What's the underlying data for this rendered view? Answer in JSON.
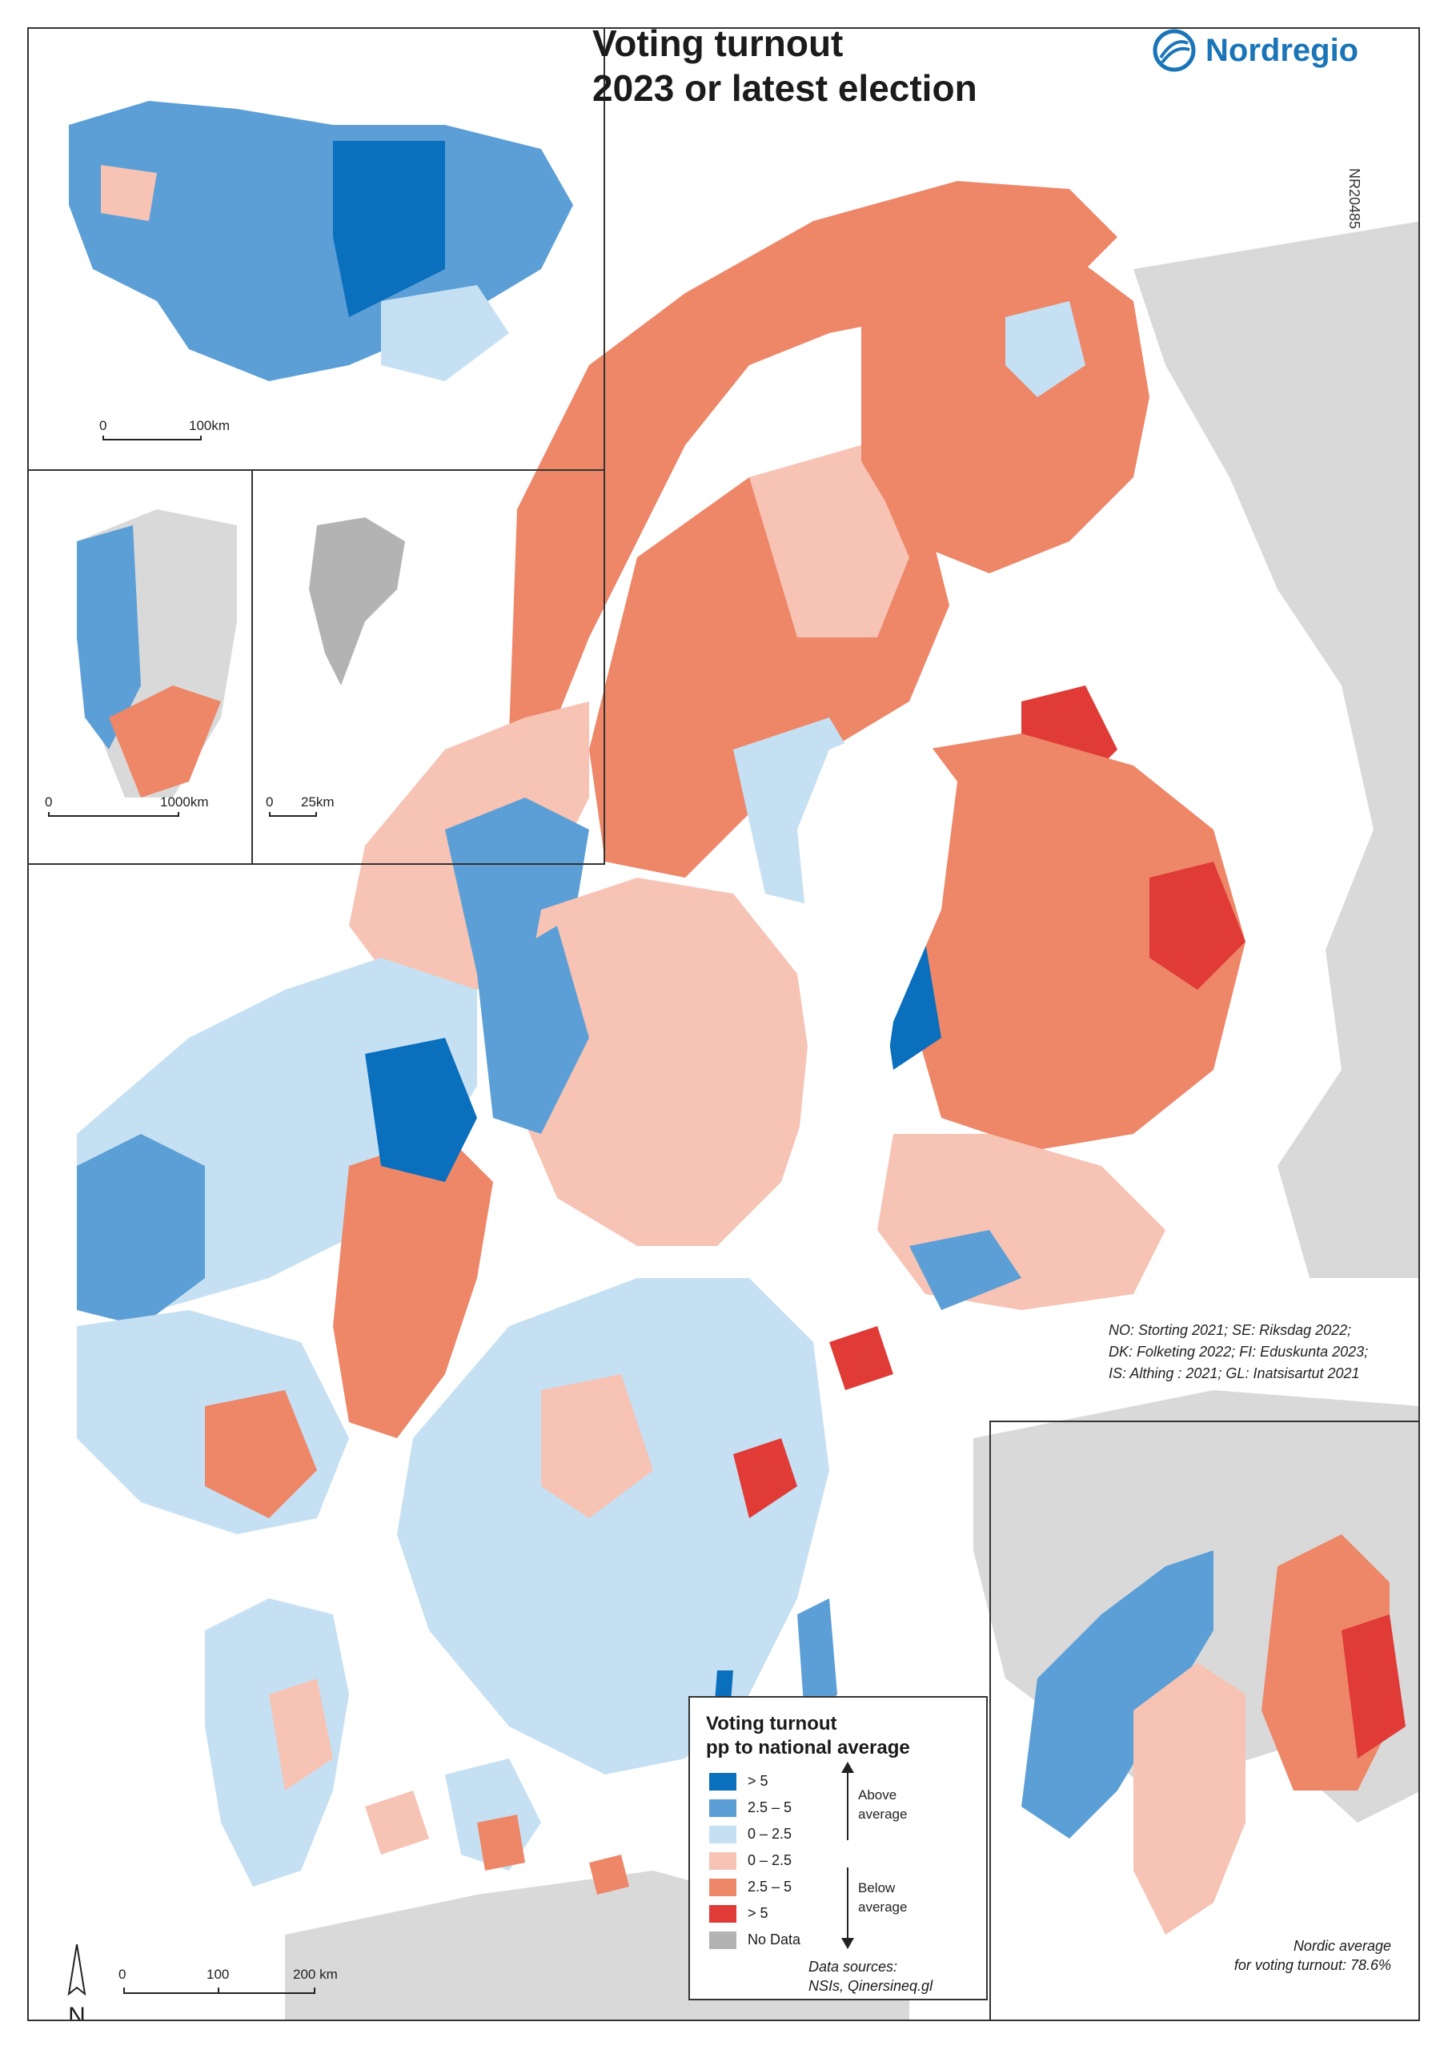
{
  "title": {
    "line1": "Voting turnout",
    "line2": "2023 or latest election"
  },
  "brand": {
    "name": "Nordregio",
    "color": "#1a74b8",
    "icon": "nordregio-logo-icon"
  },
  "map_code": "NR20485",
  "election_sources": [
    "NO: Storting 2021; SE: Riksdag 2022;",
    "DK: Folketing 2022; FI: Eduskunta 2023;",
    "IS: Althing : 2021; GL: Inatsisartut 2021"
  ],
  "scale_bars": {
    "iceland": {
      "zero": "0",
      "end": "100km"
    },
    "greenland": {
      "zero": "0",
      "end": "1000km"
    },
    "faroe": {
      "zero": "0",
      "end": "25km"
    },
    "main": {
      "zero": "0",
      "mid": "100",
      "end": "200 km"
    }
  },
  "legend": {
    "title_line1": "Voting turnout",
    "title_line2": "pp to national average",
    "classes": [
      {
        "label": "> 5",
        "color": "#0a6fbd"
      },
      {
        "label": "2.5 – 5",
        "color": "#5b9fd6"
      },
      {
        "label": "0 – 2.5",
        "color": "#c6e0f3"
      },
      {
        "label": "0 – 2.5",
        "color": "#f6c3b4"
      },
      {
        "label": "2.5 – 5",
        "color": "#ee8668"
      },
      {
        "label": "> 5",
        "color": "#e03b37"
      },
      {
        "label": "No Data",
        "color": "#b3b3b3"
      }
    ],
    "above_line1": "Above",
    "above_line2": "average",
    "below_line1": "Below",
    "below_line2": "average"
  },
  "data_sources": {
    "line1": "Data sources:",
    "line2": "NSIs, Qinersineq.gl"
  },
  "nordic_average": {
    "line1": "Nordic average",
    "line2": "for voting turnout: 78.6%"
  },
  "north_arrow": {
    "letter": "N"
  },
  "colors": {
    "background_land": "#d9d9d9",
    "frame": "#333333"
  }
}
